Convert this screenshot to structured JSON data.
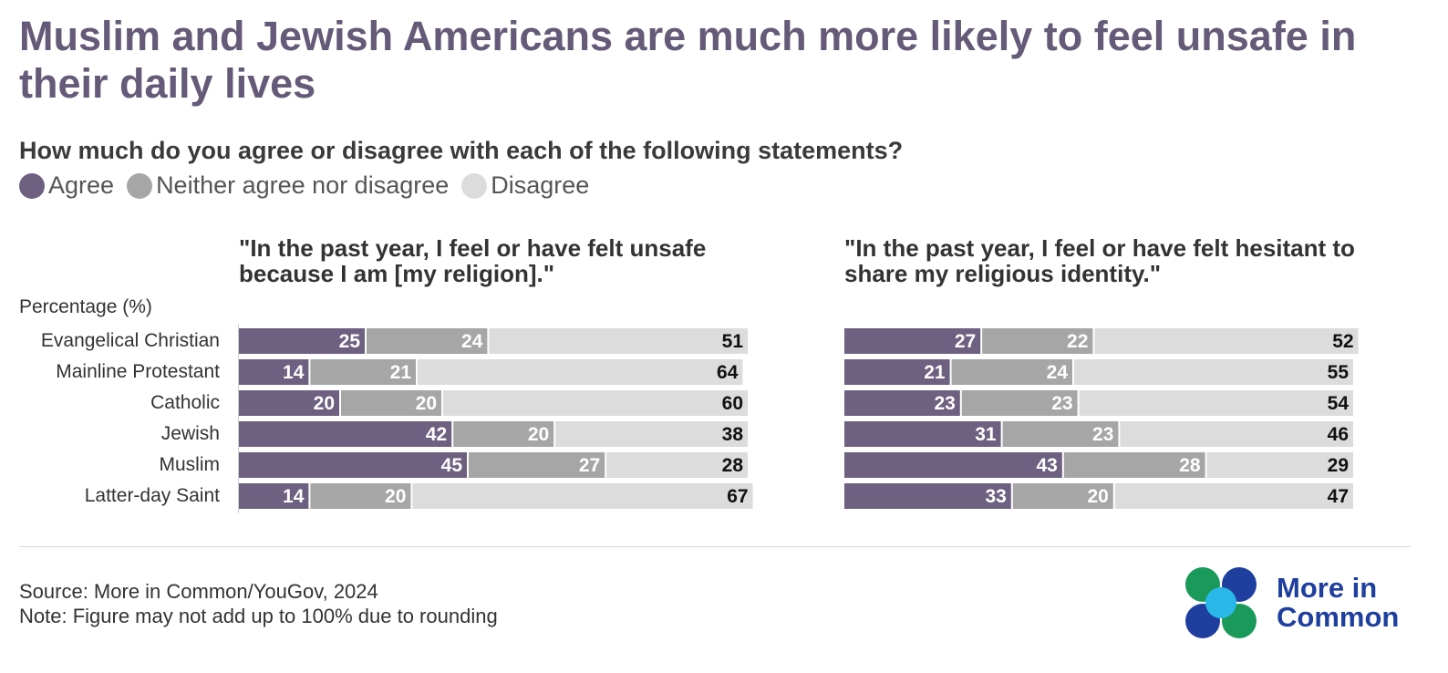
{
  "title": "Muslim and Jewish Americans are much more likely to feel unsafe in their daily lives",
  "subtitle": "How much do you agree or disagree with each of the following statements?",
  "legend": [
    {
      "label": "Agree",
      "color": "#6d6080"
    },
    {
      "label": "Neither agree nor disagree",
      "color": "#a6a6a6"
    },
    {
      "label": "Disagree",
      "color": "#dcdcdc"
    }
  ],
  "axis_unit_label": "Percentage (%)",
  "chart_data": [
    {
      "type": "bar",
      "orientation": "horizontal",
      "stacked": true,
      "title": "\"In the past year, I feel or have felt unsafe because I am [my religion].\"",
      "ylabel": "Percentage (%)",
      "categories": [
        "Evangelical Christian",
        "Mainline Protestant",
        "Catholic",
        "Jewish",
        "Muslim",
        "Latter-day Saint"
      ],
      "series": [
        {
          "name": "Agree",
          "values": [
            25,
            14,
            20,
            42,
            45,
            14
          ]
        },
        {
          "name": "Neither agree nor disagree",
          "values": [
            24,
            21,
            20,
            20,
            27,
            20
          ]
        },
        {
          "name": "Disagree",
          "values": [
            51,
            64,
            60,
            38,
            28,
            67
          ]
        }
      ],
      "legend_position": "top-left",
      "grid": false
    },
    {
      "type": "bar",
      "orientation": "horizontal",
      "stacked": true,
      "title": "\"In the past year, I feel or have felt hesitant to share my religious identity.\"",
      "categories": [
        "Evangelical Christian",
        "Mainline Protestant",
        "Catholic",
        "Jewish",
        "Muslim",
        "Latter-day Saint"
      ],
      "series": [
        {
          "name": "Agree",
          "values": [
            27,
            21,
            23,
            31,
            43,
            33
          ]
        },
        {
          "name": "Neither agree nor disagree",
          "values": [
            22,
            24,
            23,
            23,
            28,
            20
          ]
        },
        {
          "name": "Disagree",
          "values": [
            52,
            55,
            54,
            46,
            29,
            47
          ]
        }
      ],
      "legend_position": "top-left",
      "grid": false
    }
  ],
  "footer": {
    "source": "Source: More in Common/YouGov, 2024",
    "note": "Note: Figure may not add up to 100% due to rounding"
  },
  "logo": {
    "line1": "More in",
    "line2": "Common",
    "color": "#1f3f9f",
    "petal_colors": [
      "#1a9a5a",
      "#1f3f9f",
      "#29b8e8"
    ]
  }
}
